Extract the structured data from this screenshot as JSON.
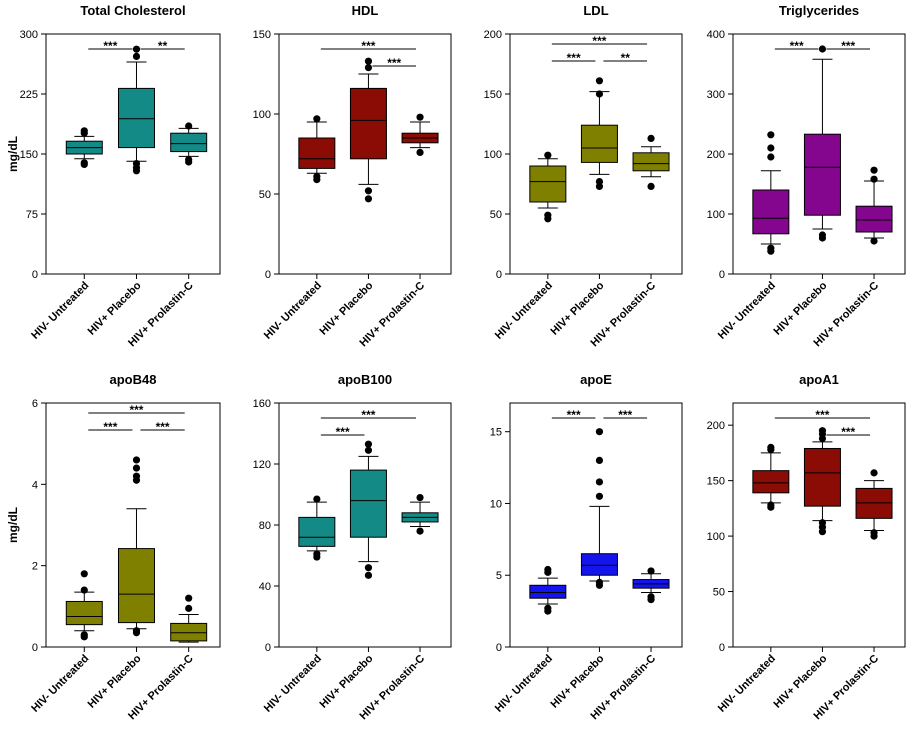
{
  "categories": [
    "HIV- Untreated",
    "HIV+ Placebo",
    "HIV+ Prolastin-C"
  ],
  "ylabel": "mg/dL",
  "chart_data": [
    {
      "type": "box",
      "title": "Total Cholesterol",
      "ylabel": "mg/dL",
      "ylim": [
        0,
        300
      ],
      "yticks": [
        "0",
        "75",
        "150",
        "225",
        "300"
      ],
      "color": "#138a86",
      "boxes": [
        {
          "category": "HIV- Untreated",
          "whisker_low": 144,
          "q1": 150,
          "median": 158,
          "q3": 166,
          "whisker_high": 172,
          "outliers": [
            137,
            139,
            176,
            179
          ]
        },
        {
          "category": "HIV+ Placebo",
          "whisker_low": 141,
          "q1": 158,
          "median": 194,
          "q3": 232,
          "whisker_high": 265,
          "outliers": [
            129,
            133,
            138,
            272,
            281
          ]
        },
        {
          "category": "HIV+ Prolastin-C",
          "whisker_low": 147,
          "q1": 153,
          "median": 163,
          "q3": 176,
          "whisker_high": 182,
          "outliers": [
            140,
            143,
            185
          ]
        }
      ],
      "significance": [
        {
          "from": 0,
          "to": 1,
          "label": "***"
        },
        {
          "from": 1,
          "to": 2,
          "label": "**"
        }
      ]
    },
    {
      "type": "box",
      "title": "HDL",
      "ylabel": "",
      "ylim": [
        0,
        150
      ],
      "yticks": [
        "0",
        "50",
        "100",
        "150"
      ],
      "color": "#8b0b05",
      "boxes": [
        {
          "category": "HIV- Untreated",
          "whisker_low": 63,
          "q1": 66,
          "median": 72,
          "q3": 85,
          "whisker_high": 95,
          "outliers": [
            59,
            61,
            97
          ]
        },
        {
          "category": "HIV+ Placebo",
          "whisker_low": 56,
          "q1": 72,
          "median": 96,
          "q3": 116,
          "whisker_high": 125,
          "outliers": [
            47,
            52,
            129,
            133
          ]
        },
        {
          "category": "HIV+ Prolastin-C",
          "whisker_low": 79,
          "q1": 82,
          "median": 85,
          "q3": 88,
          "whisker_high": 95,
          "outliers": [
            76,
            98
          ]
        }
      ],
      "significance": [
        {
          "from": 0,
          "to": 2,
          "label": "***"
        },
        {
          "from": 1,
          "to": 2,
          "label": "***"
        }
      ]
    },
    {
      "type": "box",
      "title": "LDL",
      "ylabel": "",
      "ylim": [
        0,
        200
      ],
      "yticks": [
        "0",
        "50",
        "100",
        "150",
        "200"
      ],
      "color": "#808000",
      "boxes": [
        {
          "category": "HIV- Untreated",
          "whisker_low": 55,
          "q1": 60,
          "median": 77,
          "q3": 90,
          "whisker_high": 96,
          "outliers": [
            46,
            49,
            99
          ]
        },
        {
          "category": "HIV+ Placebo",
          "whisker_low": 83,
          "q1": 93,
          "median": 105,
          "q3": 124,
          "whisker_high": 152,
          "outliers": [
            73,
            77,
            150,
            161
          ]
        },
        {
          "category": "HIV+ Prolastin-C",
          "whisker_low": 81,
          "q1": 86,
          "median": 92,
          "q3": 101,
          "whisker_high": 106,
          "outliers": [
            73,
            113
          ]
        }
      ],
      "significance": [
        {
          "from": 0,
          "to": 2,
          "label": "***"
        },
        {
          "from": 0,
          "to": 1,
          "label": "***"
        },
        {
          "from": 1,
          "to": 2,
          "label": "**"
        }
      ]
    },
    {
      "type": "box",
      "title": "Triglycerides",
      "ylabel": "",
      "ylim": [
        0,
        400
      ],
      "yticks": [
        "0",
        "100",
        "200",
        "300",
        "400"
      ],
      "color": "#85068e",
      "boxes": [
        {
          "category": "HIV- Untreated",
          "whisker_low": 50,
          "q1": 67,
          "median": 93,
          "q3": 140,
          "whisker_high": 172,
          "outliers": [
            38,
            43,
            195,
            210,
            232
          ]
        },
        {
          "category": "HIV+ Placebo",
          "whisker_low": 75,
          "q1": 98,
          "median": 178,
          "q3": 233,
          "whisker_high": 358,
          "outliers": [
            60,
            65,
            375
          ]
        },
        {
          "category": "HIV+ Prolastin-C",
          "whisker_low": 60,
          "q1": 70,
          "median": 90,
          "q3": 113,
          "whisker_high": 155,
          "outliers": [
            55,
            158,
            173
          ]
        }
      ],
      "significance": [
        {
          "from": 0,
          "to": 1,
          "label": "***"
        },
        {
          "from": 1,
          "to": 2,
          "label": "***"
        }
      ]
    },
    {
      "type": "box",
      "title": "apoB48",
      "ylabel": "mg/dL",
      "ylim": [
        0,
        6
      ],
      "yticks": [
        "0",
        "2",
        "4",
        "6"
      ],
      "color": "#808000",
      "boxes": [
        {
          "category": "HIV- Untreated",
          "whisker_low": 0.4,
          "q1": 0.55,
          "median": 0.75,
          "q3": 1.12,
          "whisker_high": 1.35,
          "outliers": [
            0.25,
            0.3,
            1.4,
            1.8
          ]
        },
        {
          "category": "HIV+ Placebo",
          "whisker_low": 0.45,
          "q1": 0.6,
          "median": 1.3,
          "q3": 2.42,
          "whisker_high": 3.4,
          "outliers": [
            0.35,
            0.4,
            4.1,
            4.2,
            4.4,
            4.6
          ]
        },
        {
          "category": "HIV+ Prolastin-C",
          "whisker_low": 0.12,
          "q1": 0.15,
          "median": 0.35,
          "q3": 0.58,
          "whisker_high": 0.8,
          "outliers": [
            0.95,
            1.2
          ]
        }
      ],
      "significance": [
        {
          "from": 0,
          "to": 2,
          "label": "***"
        },
        {
          "from": 0,
          "to": 1,
          "label": "***"
        },
        {
          "from": 1,
          "to": 2,
          "label": "***"
        }
      ]
    },
    {
      "type": "box",
      "title": "apoB100",
      "ylabel": "",
      "ylim": [
        0,
        160
      ],
      "yticks": [
        "0",
        "40",
        "80",
        "120",
        "160"
      ],
      "color": "#138a86",
      "boxes": [
        {
          "category": "HIV- Untreated",
          "whisker_low": 63,
          "q1": 66,
          "median": 72,
          "q3": 85,
          "whisker_high": 95,
          "outliers": [
            59,
            61,
            97
          ]
        },
        {
          "category": "HIV+ Placebo",
          "whisker_low": 56,
          "q1": 72,
          "median": 96,
          "q3": 116,
          "whisker_high": 125,
          "outliers": [
            47,
            52,
            129,
            133
          ]
        },
        {
          "category": "HIV+ Prolastin-C",
          "whisker_low": 79,
          "q1": 82,
          "median": 85,
          "q3": 88,
          "whisker_high": 95,
          "outliers": [
            76,
            98
          ]
        }
      ],
      "significance": [
        {
          "from": 0,
          "to": 2,
          "label": "***"
        },
        {
          "from": 0,
          "to": 1,
          "label": "***"
        }
      ]
    },
    {
      "type": "box",
      "title": "apoE",
      "ylabel": "",
      "ylim": [
        0,
        17
      ],
      "yticks": [
        "0",
        "5",
        "10",
        "15"
      ],
      "ytick_values": [
        0,
        5,
        10,
        15
      ],
      "color": "#1414ee",
      "boxes": [
        {
          "category": "HIV- Untreated",
          "whisker_low": 3.0,
          "q1": 3.4,
          "median": 3.8,
          "q3": 4.3,
          "whisker_high": 4.8,
          "outliers": [
            2.5,
            2.7,
            5.2,
            5.4
          ]
        },
        {
          "category": "HIV+ Placebo",
          "whisker_low": 4.6,
          "q1": 5.0,
          "median": 5.7,
          "q3": 6.5,
          "whisker_high": 9.8,
          "outliers": [
            4.3,
            4.5,
            10.5,
            11.5,
            13.0,
            15.0
          ]
        },
        {
          "category": "HIV+ Prolastin-C",
          "whisker_low": 3.8,
          "q1": 4.1,
          "median": 4.4,
          "q3": 4.7,
          "whisker_high": 5.1,
          "outliers": [
            3.3,
            3.5,
            5.3
          ]
        }
      ],
      "significance": [
        {
          "from": 0,
          "to": 1,
          "label": "***"
        },
        {
          "from": 1,
          "to": 2,
          "label": "***"
        }
      ]
    },
    {
      "type": "box",
      "title": "apoA1",
      "ylabel": "",
      "ylim": [
        0,
        220
      ],
      "yticks": [
        "0",
        "50",
        "100",
        "150",
        "200"
      ],
      "ytick_values": [
        0,
        50,
        100,
        150,
        200
      ],
      "color": "#8b0b05",
      "boxes": [
        {
          "category": "HIV- Untreated",
          "whisker_low": 130,
          "q1": 139,
          "median": 148,
          "q3": 159,
          "whisker_high": 175,
          "outliers": [
            126,
            128,
            178,
            180
          ]
        },
        {
          "category": "HIV+ Placebo",
          "whisker_low": 114,
          "q1": 127,
          "median": 157,
          "q3": 179,
          "whisker_high": 185,
          "outliers": [
            104,
            108,
            112,
            188,
            192,
            195
          ]
        },
        {
          "category": "HIV+ Prolastin-C",
          "whisker_low": 105,
          "q1": 116,
          "median": 130,
          "q3": 143,
          "whisker_high": 150,
          "outliers": [
            100,
            103,
            157
          ]
        }
      ],
      "significance": [
        {
          "from": 0,
          "to": 2,
          "label": "***"
        },
        {
          "from": 1,
          "to": 2,
          "label": "***"
        }
      ]
    }
  ]
}
